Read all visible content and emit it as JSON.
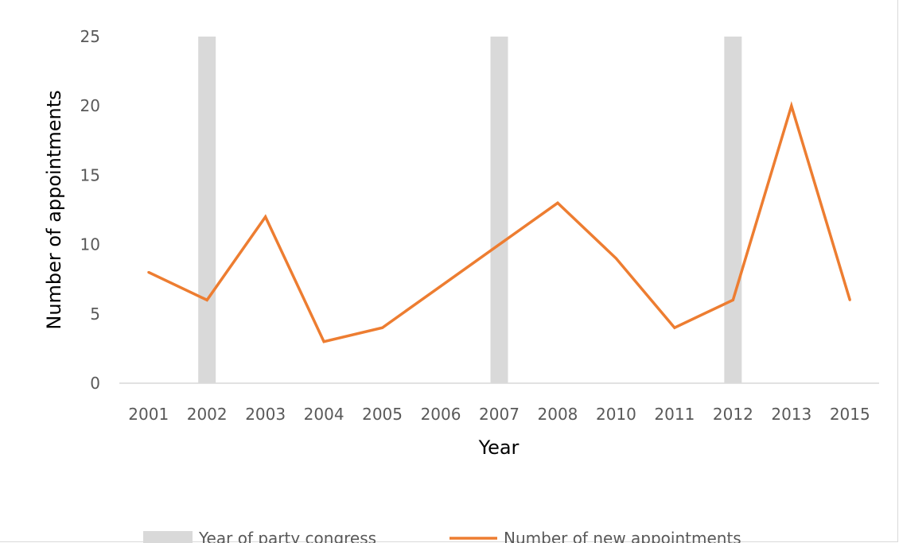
{
  "chart_data": {
    "type": "line",
    "categories": [
      "2001",
      "2002",
      "2003",
      "2004",
      "2005",
      "2006",
      "2007",
      "2008",
      "2010",
      "2011",
      "2012",
      "2013",
      "2015"
    ],
    "series": [
      {
        "name": "Number of new appointments",
        "type": "line",
        "values": [
          8,
          6,
          12,
          3,
          4,
          7,
          10,
          13,
          9,
          4,
          6,
          20,
          6
        ],
        "color": "#ED7D31"
      },
      {
        "name": "Year of party congress",
        "type": "bar",
        "values": [
          0,
          25,
          0,
          0,
          0,
          0,
          25,
          0,
          0,
          0,
          25,
          0,
          0
        ],
        "color": "#D9D9D9"
      }
    ],
    "xlabel": "Year",
    "ylabel": "Number of appointments",
    "ylim": [
      0,
      25
    ],
    "yticks": [
      "0",
      "5",
      "10",
      "15",
      "20",
      "25"
    ],
    "grid": false,
    "legend_position": "bottom"
  }
}
